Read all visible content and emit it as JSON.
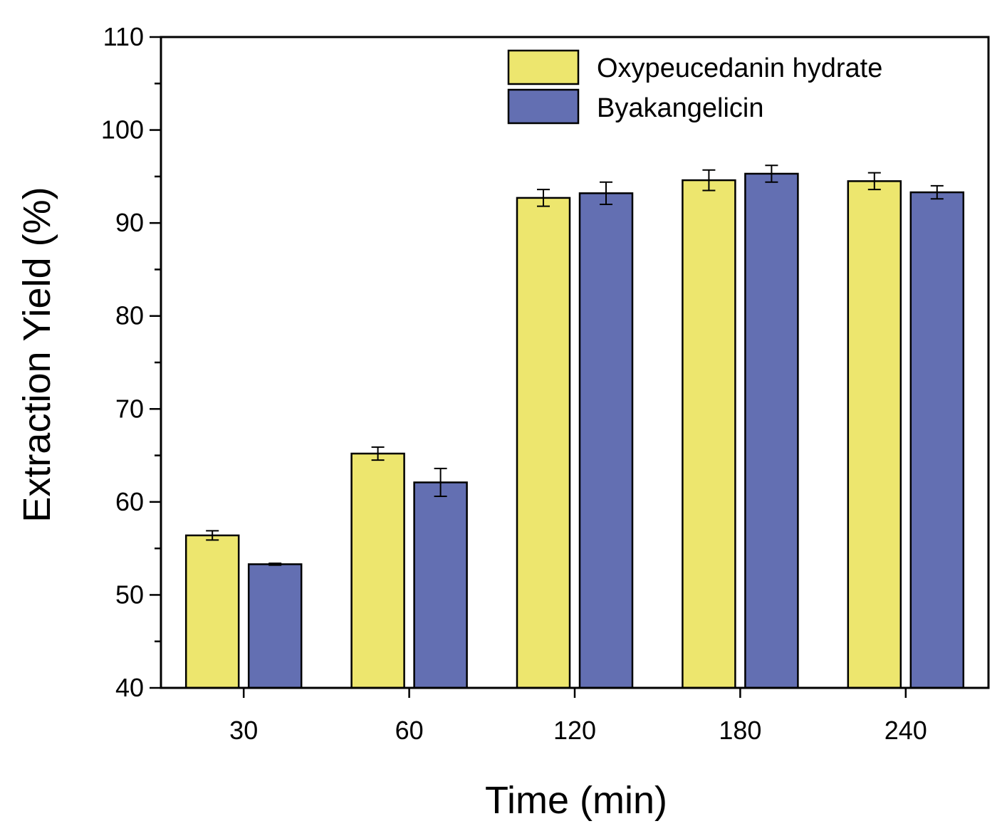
{
  "chart_data": {
    "type": "bar",
    "title": "",
    "xlabel": "Time (min)",
    "ylabel": "Extraction Yield (%)",
    "categories": [
      "30",
      "60",
      "120",
      "180",
      "240"
    ],
    "ylim": [
      40,
      110
    ],
    "yticks": [
      "40",
      "50",
      "60",
      "70",
      "80",
      "90",
      "100",
      "110"
    ],
    "series": [
      {
        "name": "Oxypeucedanin hydrate",
        "color": "#ede66e",
        "values": [
          56.4,
          65.2,
          92.7,
          94.6,
          94.5
        ],
        "errors": [
          0.5,
          0.7,
          0.9,
          1.1,
          0.9
        ]
      },
      {
        "name": "Byakangelicin",
        "color": "#636fb2",
        "values": [
          53.3,
          62.1,
          93.2,
          95.3,
          93.3
        ],
        "errors": [
          0.1,
          1.5,
          1.2,
          0.9,
          0.7
        ]
      }
    ],
    "legend_position": "top-right",
    "grid": false
  }
}
